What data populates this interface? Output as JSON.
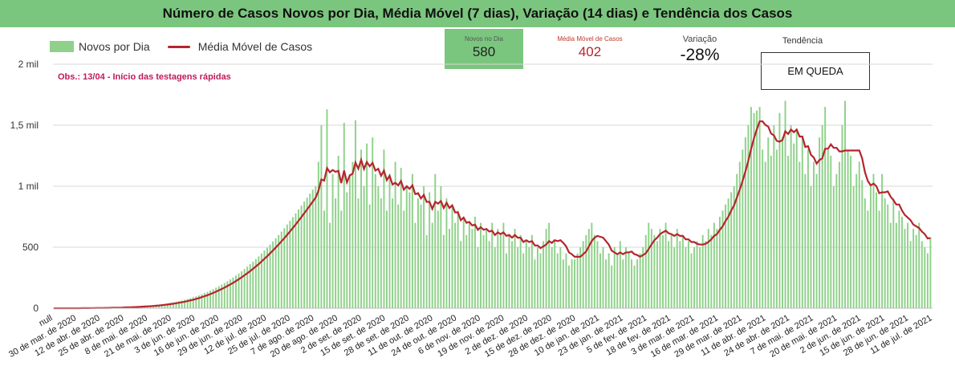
{
  "title": "Número de Casos Novos por Dia, Média Móvel (7 dias), Variação (14 dias) e Tendência dos Casos",
  "legend": {
    "bars": "Novos por Dia",
    "line": "Média Móvel de Casos"
  },
  "note": "Obs.: 13/04 - Início das testagens rápidas",
  "kpis": {
    "novos_label": "Novos no Dia",
    "novos_value": "580",
    "media_label": "Média Móvel de Casos",
    "media_value": "402",
    "variacao_label": "Variação",
    "variacao_value": "-28%",
    "tendencia_label": "Tendência",
    "tendencia_value": "EM QUEDA"
  },
  "colors": {
    "bars": "#8fd18a",
    "line": "#b5252e",
    "header": "#7bc67e",
    "note": "#c2185b"
  },
  "chart_data": {
    "type": "bar",
    "title": "Número de Casos Novos por Dia, Média Móvel (7 dias), Variação (14 dias) e Tendência dos Casos",
    "ylim": [
      0,
      2000
    ],
    "y_ticks": [
      0,
      500,
      1000,
      1500,
      2000
    ],
    "y_tick_labels": [
      "0",
      "500",
      "1 mil",
      "1,5 mil",
      "2 mil"
    ],
    "x_tick_labels": [
      "null",
      "30 de mar. de 2020",
      "12 de abr. de 2020",
      "25 de abr. de 2020",
      "8 de mai. de 2020",
      "21 de mai. de 2020",
      "3 de jun. de 2020",
      "16 de jun. de 2020",
      "29 de jun. de 2020",
      "12 de jul. de 2020",
      "25 de jul. de 2020",
      "7 de ago. de 2020",
      "20 de ago. de 2020",
      "2 de set. de 2020",
      "15 de set. de 2020",
      "28 de set. de 2020",
      "11 de out. de 2020",
      "24 de out. de 2020",
      "6 de nov. de 2020",
      "19 de nov. de 2020",
      "2 de dez. de 2020",
      "15 de dez. de 2020",
      "28 de dez. de 2020",
      "10 de jan. de 2021",
      "23 de jan. de 2021",
      "5 de fev. de 2021",
      "18 de fev. de 2021",
      "3 de mar. de 2021",
      "16 de mar. de 2021",
      "29 de mar. de 2021",
      "11 de abr. de 2021",
      "24 de abr. de 2021",
      "7 de mai. de 2021",
      "20 de mai. de 2021",
      "2 de jun. de 2021",
      "15 de jun. de 2021",
      "28 de jun. de 2021",
      "11 de jul. de 2021"
    ],
    "bar_series_name": "Novos por Dia",
    "line_series_name": "Média Móvel de Casos",
    "bar_values": [
      0,
      0,
      0,
      0,
      0,
      0,
      0,
      0,
      1,
      1,
      1,
      1,
      2,
      2,
      2,
      3,
      3,
      3,
      3,
      4,
      5,
      5,
      6,
      7,
      8,
      9,
      10,
      11,
      12,
      14,
      15,
      16,
      18,
      20,
      22,
      24,
      27,
      30,
      33,
      36,
      40,
      44,
      48,
      53,
      58,
      63,
      69,
      75,
      82,
      90,
      97,
      106,
      115,
      124,
      134,
      145,
      156,
      168,
      180,
      193,
      207,
      221,
      236,
      252,
      268,
      285,
      303,
      321,
      341,
      361,
      381,
      403,
      425,
      448,
      472,
      496,
      521,
      547,
      573,
      600,
      628,
      656,
      686,
      716,
      746,
      777,
      809,
      841,
      873,
      906,
      939,
      972,
      1000,
      1200,
      1500,
      800,
      1630,
      700,
      1100,
      900,
      1250,
      800,
      1520,
      950,
      1100,
      1200,
      1540,
      900,
      1300,
      1000,
      1350,
      850,
      1400,
      1100,
      1000,
      900,
      1300,
      800,
      1100,
      900,
      1200,
      850,
      1150,
      800,
      1000,
      950,
      1100,
      700,
      900,
      850,
      1000,
      600,
      950,
      700,
      1100,
      800,
      1000,
      600,
      900,
      650,
      850,
      700,
      800,
      550,
      750,
      600,
      700,
      650,
      750,
      500,
      700,
      600,
      650,
      550,
      700,
      500,
      650,
      600,
      700,
      450,
      600,
      550,
      650,
      500,
      600,
      450,
      550,
      500,
      600,
      400,
      500,
      450,
      550,
      650,
      700,
      500,
      550,
      450,
      500,
      400,
      450,
      350,
      400,
      400,
      450,
      500,
      550,
      600,
      650,
      700,
      600,
      550,
      450,
      500,
      400,
      450,
      350,
      500,
      450,
      550,
      400,
      500,
      450,
      400,
      350,
      400,
      450,
      500,
      600,
      700,
      650,
      600,
      550,
      650,
      600,
      700,
      550,
      600,
      500,
      650,
      550,
      600,
      500,
      550,
      450,
      500,
      550,
      500,
      600,
      550,
      650,
      600,
      700,
      650,
      750,
      800,
      850,
      900,
      950,
      1000,
      1100,
      1200,
      1300,
      1400,
      1500,
      1650,
      1600,
      1620,
      1650,
      1300,
      1200,
      1400,
      1250,
      1500,
      1300,
      1600,
      1400,
      1700,
      1250,
      1500,
      1350,
      1450,
      1200,
      1400,
      1100,
      1300,
      1000,
      1200,
      1100,
      1400,
      1500,
      1650,
      1300,
      1250,
      1000,
      1100,
      1200,
      1500,
      1700,
      1300,
      1250,
      1000,
      1100,
      1200,
      1050,
      900,
      800,
      1000,
      1100,
      950,
      800,
      1100,
      900,
      850,
      700,
      900,
      700,
      800,
      750,
      650,
      700,
      550,
      650,
      600,
      700,
      550,
      500,
      450,
      580
    ]
  }
}
